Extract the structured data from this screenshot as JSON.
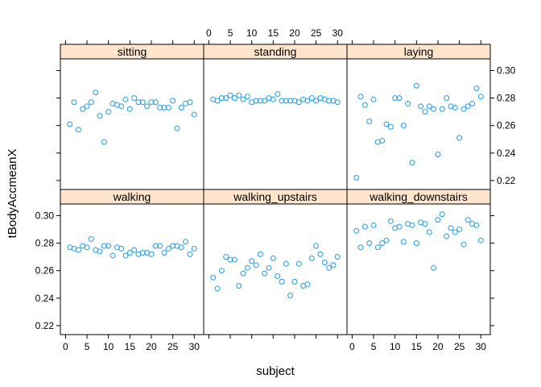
{
  "chart_data": {
    "type": "scatter",
    "ylabel": "tBodyAccmeanX",
    "xlabel": "subject",
    "xlim": [
      -1.2,
      32.2
    ],
    "ylim": [
      0.2135,
      0.3085
    ],
    "xticks": [
      0,
      5,
      10,
      15,
      20,
      25,
      30
    ],
    "yticks": [
      0.22,
      0.24,
      0.26,
      0.28,
      0.3
    ],
    "y_tick_labels": [
      "0.22",
      "0.24",
      "0.26",
      "0.28",
      "0.30"
    ],
    "point_color": "#1f9bea",
    "strip_color": "#ffe5cc",
    "panels": [
      {
        "name": "sitting",
        "x": [
          1,
          2,
          3,
          4,
          5,
          6,
          7,
          8,
          9,
          10,
          11,
          12,
          13,
          14,
          15,
          16,
          17,
          18,
          19,
          20,
          21,
          22,
          23,
          24,
          25,
          26,
          27,
          28,
          29,
          30
        ],
        "y": [
          0.261,
          0.277,
          0.257,
          0.272,
          0.274,
          0.277,
          0.284,
          0.267,
          0.248,
          0.27,
          0.276,
          0.275,
          0.274,
          0.279,
          0.272,
          0.28,
          0.277,
          0.277,
          0.274,
          0.277,
          0.277,
          0.273,
          0.273,
          0.273,
          0.278,
          0.258,
          0.273,
          0.276,
          0.277,
          0.268
        ]
      },
      {
        "name": "standing",
        "x": [
          1,
          2,
          3,
          4,
          5,
          6,
          7,
          8,
          9,
          10,
          11,
          12,
          13,
          14,
          15,
          16,
          17,
          18,
          19,
          20,
          21,
          22,
          23,
          24,
          25,
          26,
          27,
          28,
          29,
          30
        ],
        "y": [
          0.279,
          0.278,
          0.28,
          0.28,
          0.282,
          0.28,
          0.282,
          0.279,
          0.281,
          0.277,
          0.278,
          0.278,
          0.278,
          0.28,
          0.279,
          0.283,
          0.278,
          0.278,
          0.278,
          0.278,
          0.277,
          0.279,
          0.278,
          0.28,
          0.278,
          0.28,
          0.279,
          0.278,
          0.278,
          0.277
        ]
      },
      {
        "name": "laying",
        "x": [
          1,
          2,
          3,
          4,
          5,
          6,
          7,
          8,
          9,
          10,
          11,
          12,
          13,
          14,
          15,
          16,
          17,
          18,
          19,
          20,
          21,
          22,
          23,
          24,
          25,
          26,
          27,
          28,
          29,
          30
        ],
        "y": [
          0.222,
          0.281,
          0.275,
          0.263,
          0.279,
          0.248,
          0.249,
          0.261,
          0.259,
          0.28,
          0.28,
          0.26,
          0.276,
          0.233,
          0.289,
          0.274,
          0.27,
          0.274,
          0.272,
          0.239,
          0.272,
          0.28,
          0.274,
          0.273,
          0.251,
          0.272,
          0.274,
          0.276,
          0.287,
          0.281
        ]
      },
      {
        "name": "walking",
        "x": [
          1,
          2,
          3,
          4,
          5,
          6,
          7,
          8,
          9,
          10,
          11,
          12,
          13,
          14,
          15,
          16,
          17,
          18,
          19,
          20,
          21,
          22,
          23,
          24,
          25,
          26,
          27,
          28,
          29,
          30
        ],
        "y": [
          0.277,
          0.276,
          0.275,
          0.278,
          0.277,
          0.283,
          0.275,
          0.274,
          0.278,
          0.278,
          0.271,
          0.277,
          0.276,
          0.271,
          0.273,
          0.275,
          0.272,
          0.273,
          0.273,
          0.272,
          0.278,
          0.278,
          0.273,
          0.276,
          0.278,
          0.278,
          0.277,
          0.281,
          0.272,
          0.276
        ]
      },
      {
        "name": "walking_upstairs",
        "x": [
          1,
          2,
          3,
          4,
          5,
          6,
          7,
          8,
          9,
          10,
          11,
          12,
          13,
          14,
          15,
          16,
          17,
          18,
          19,
          20,
          21,
          22,
          23,
          24,
          25,
          26,
          27,
          28,
          29,
          30
        ],
        "y": [
          0.255,
          0.247,
          0.26,
          0.27,
          0.268,
          0.268,
          0.249,
          0.258,
          0.262,
          0.267,
          0.264,
          0.272,
          0.258,
          0.262,
          0.269,
          0.256,
          0.252,
          0.265,
          0.242,
          0.252,
          0.265,
          0.249,
          0.25,
          0.269,
          0.278,
          0.272,
          0.266,
          0.262,
          0.264,
          0.27
        ]
      },
      {
        "name": "walking_downstairs",
        "x": [
          1,
          2,
          3,
          4,
          5,
          6,
          7,
          8,
          9,
          10,
          11,
          12,
          13,
          14,
          15,
          16,
          17,
          18,
          19,
          20,
          21,
          22,
          23,
          24,
          25,
          26,
          27,
          28,
          29,
          30
        ],
        "y": [
          0.289,
          0.277,
          0.292,
          0.28,
          0.293,
          0.277,
          0.28,
          0.282,
          0.296,
          0.291,
          0.292,
          0.281,
          0.294,
          0.293,
          0.28,
          0.295,
          0.294,
          0.288,
          0.262,
          0.297,
          0.301,
          0.285,
          0.291,
          0.288,
          0.29,
          0.279,
          0.297,
          0.294,
          0.293,
          0.282
        ]
      }
    ]
  }
}
